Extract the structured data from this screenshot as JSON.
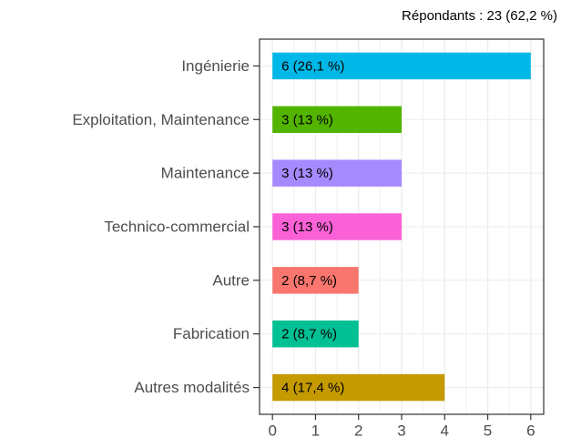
{
  "chart_data": {
    "type": "barh",
    "subtitle": "Répondants : 23 (62,2 %)",
    "categories": [
      "Ingénierie",
      "Exploitation, Maintenance",
      "Maintenance",
      "Technico-commercial",
      "Autre",
      "Fabrication",
      "Autres modalités"
    ],
    "values": [
      6,
      3,
      3,
      3,
      2,
      2,
      4
    ],
    "value_labels": [
      "6 (26,1 %)",
      "3 (13 %)",
      "3 (13 %)",
      "3 (13 %)",
      "2 (8,7 %)",
      "2 (8,7 %)",
      "4 (17,4 %)"
    ],
    "colors": [
      "#00b8e7",
      "#53b400",
      "#a58aff",
      "#fb61d7",
      "#f8766d",
      "#00c094",
      "#c49a00"
    ],
    "xlim": [
      -0.3,
      6.3
    ],
    "xticks": [
      0,
      1,
      2,
      3,
      4,
      5,
      6
    ],
    "grid": true
  }
}
